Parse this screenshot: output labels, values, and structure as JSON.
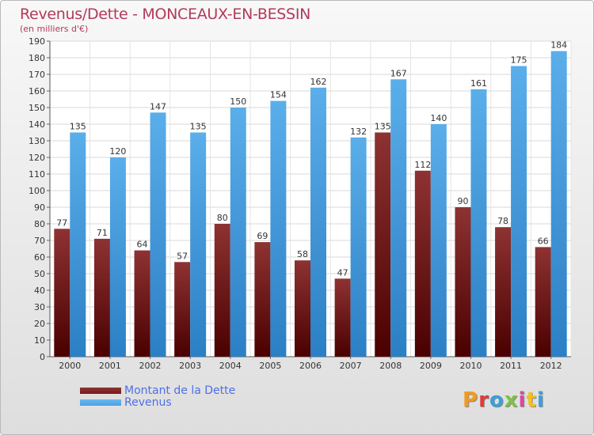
{
  "header": {
    "title": "Revenus/Dette - MONCEAUX-EN-BESSIN",
    "subtitle": "(en milliers d'€)"
  },
  "legend": {
    "items": [
      {
        "label": "Montant de la Dette",
        "color": "#7a1a1a"
      },
      {
        "label": "Revenus",
        "color": "#4aa1e3"
      }
    ]
  },
  "logo": {
    "text": "Proxiti",
    "colors": [
      "#f29a1f",
      "#e03b3b",
      "#3aa0dc",
      "#7cc244",
      "#d94aa0",
      "#f2c21f",
      "#3aa0dc"
    ]
  },
  "chart_data": {
    "type": "bar",
    "categories": [
      "2000",
      "2001",
      "2002",
      "2003",
      "2004",
      "2005",
      "2006",
      "2007",
      "2008",
      "2009",
      "2010",
      "2011",
      "2012"
    ],
    "series": [
      {
        "name": "Montant de la Dette",
        "color": "#7a1a1a",
        "values": [
          77,
          71,
          64,
          57,
          80,
          69,
          58,
          47,
          135,
          112,
          90,
          78,
          66
        ]
      },
      {
        "name": "Revenus",
        "color": "#4aa1e3",
        "values": [
          135,
          120,
          147,
          135,
          150,
          154,
          162,
          132,
          167,
          140,
          161,
          175,
          184
        ]
      }
    ],
    "ylim": [
      0,
      190
    ],
    "ytick_step": 10,
    "grid": true
  }
}
